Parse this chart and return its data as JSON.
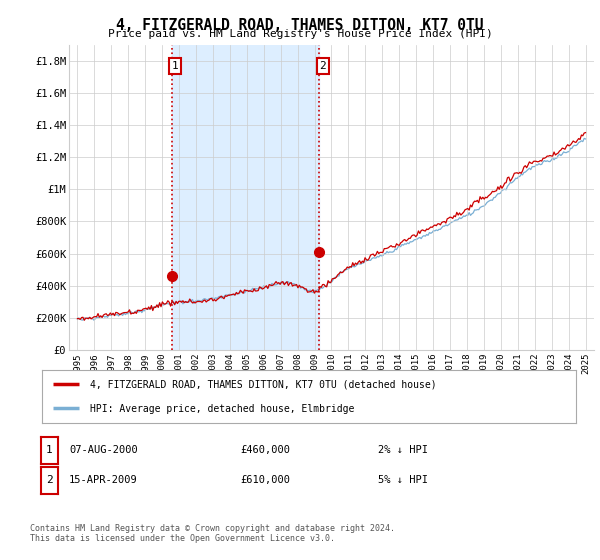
{
  "title": "4, FITZGERALD ROAD, THAMES DITTON, KT7 0TU",
  "subtitle": "Price paid vs. HM Land Registry's House Price Index (HPI)",
  "ylabel_ticks": [
    "£0",
    "£200K",
    "£400K",
    "£600K",
    "£800K",
    "£1M",
    "£1.2M",
    "£1.4M",
    "£1.6M",
    "£1.8M"
  ],
  "ytick_values": [
    0,
    200000,
    400000,
    600000,
    800000,
    1000000,
    1200000,
    1400000,
    1600000,
    1800000
  ],
  "ylim": [
    0,
    1900000
  ],
  "xlim_start": 1994.5,
  "xlim_end": 2025.5,
  "xtick_years": [
    1995,
    1996,
    1997,
    1998,
    1999,
    2000,
    2001,
    2002,
    2003,
    2004,
    2005,
    2006,
    2007,
    2008,
    2009,
    2010,
    2011,
    2012,
    2013,
    2014,
    2015,
    2016,
    2017,
    2018,
    2019,
    2020,
    2021,
    2022,
    2023,
    2024,
    2025
  ],
  "purchase1_x": 2000.58,
  "purchase1_y": 460000,
  "purchase1_label": "1",
  "purchase2_x": 2009.28,
  "purchase2_y": 610000,
  "purchase2_label": "2",
  "line_color_price": "#cc0000",
  "line_color_hpi": "#7aafd4",
  "vline_color": "#cc0000",
  "annotation_box_color": "#cc0000",
  "shade_color": "#ddeeff",
  "legend_label_price": "4, FITZGERALD ROAD, THAMES DITTON, KT7 0TU (detached house)",
  "legend_label_hpi": "HPI: Average price, detached house, Elmbridge",
  "table_row1": [
    "1",
    "07-AUG-2000",
    "£460,000",
    "2% ↓ HPI"
  ],
  "table_row2": [
    "2",
    "15-APR-2009",
    "£610,000",
    "5% ↓ HPI"
  ],
  "footer": "Contains HM Land Registry data © Crown copyright and database right 2024.\nThis data is licensed under the Open Government Licence v3.0.",
  "background_color": "#ffffff",
  "grid_color": "#cccccc"
}
